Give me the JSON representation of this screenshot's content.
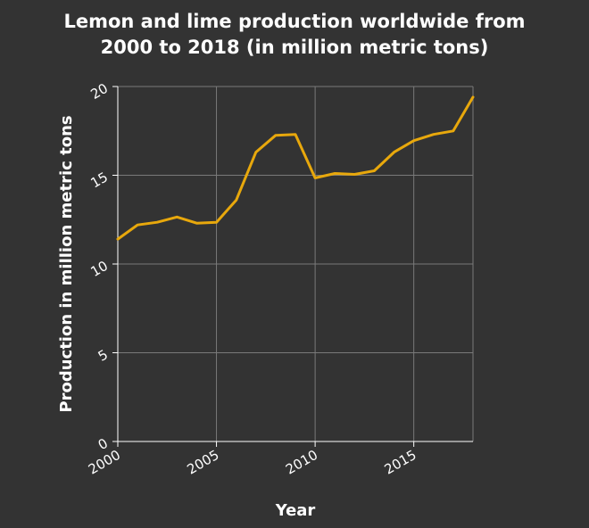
{
  "chart_data": {
    "type": "line",
    "title_line1": "Lemon and lime production worldwide from",
    "title_line2": "2000 to 2018 (in million metric tons)",
    "xlabel": "Year",
    "ylabel": "Production in million metric tons",
    "x": [
      2000,
      2001,
      2002,
      2003,
      2004,
      2005,
      2006,
      2007,
      2008,
      2009,
      2010,
      2011,
      2012,
      2013,
      2014,
      2015,
      2016,
      2017,
      2018
    ],
    "series": [
      {
        "values": [
          11.4,
          12.2,
          12.35,
          12.65,
          12.3,
          12.35,
          13.6,
          16.3,
          17.25,
          17.3,
          14.85,
          15.1,
          15.05,
          15.25,
          16.3,
          16.95,
          17.3,
          17.5,
          19.4
        ],
        "color": "#e8a80c"
      }
    ],
    "xlim": [
      2000,
      2018
    ],
    "ylim": [
      0,
      20
    ],
    "xticks": [
      "2000",
      "2005",
      "2010",
      "2015"
    ],
    "yticks": [
      "0",
      "5",
      "10",
      "15",
      "20"
    ],
    "grid": true,
    "background": "#333333",
    "gridcolor": "#7a7a7a"
  }
}
